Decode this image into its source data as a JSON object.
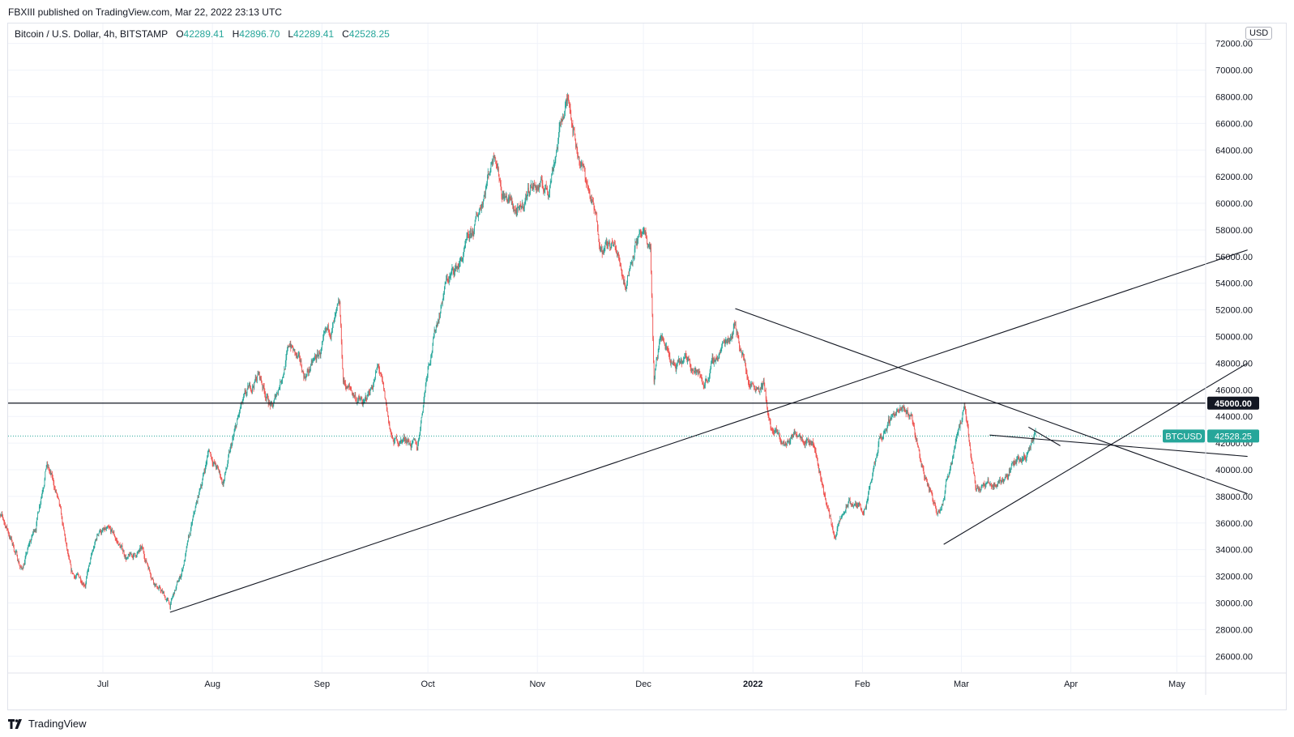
{
  "header": {
    "published_by": "FBXIII published on TradingView.com, Mar 22, 2022 23:13 UTC"
  },
  "legend": {
    "symbol": "Bitcoin / U.S. Dollar, 4h, BITSTAMP",
    "o_label": "O",
    "o_value": "42289.41",
    "h_label": "H",
    "h_value": "42896.70",
    "l_label": "L",
    "l_value": "42289.41",
    "c_label": "C",
    "c_value": "42528.25"
  },
  "currency_button": "USD",
  "brand": {
    "name": "TradingView"
  },
  "colors": {
    "up": "#26a69a",
    "down": "#ef5350",
    "line": "#131722",
    "grid": "#f0f3fa",
    "price_label_bg": "#26a69a",
    "level_label_bg": "#131722"
  },
  "chart_data": {
    "type": "candlestick",
    "symbol": "BTCUSD",
    "interval": "4h",
    "ylim": [
      24800,
      73500
    ],
    "y_ticks": [
      26000,
      28000,
      30000,
      32000,
      34000,
      36000,
      38000,
      40000,
      42000,
      44000,
      46000,
      48000,
      50000,
      52000,
      54000,
      56000,
      58000,
      60000,
      62000,
      64000,
      66000,
      68000,
      70000,
      72000
    ],
    "x_ticks": [
      {
        "label": "Jul",
        "date": "2021-07-01",
        "bold": false
      },
      {
        "label": "Aug",
        "date": "2021-08-01",
        "bold": false
      },
      {
        "label": "Sep",
        "date": "2021-09-01",
        "bold": false
      },
      {
        "label": "Oct",
        "date": "2021-10-01",
        "bold": false
      },
      {
        "label": "Nov",
        "date": "2021-11-01",
        "bold": false
      },
      {
        "label": "Dec",
        "date": "2021-12-01",
        "bold": false
      },
      {
        "label": "2022",
        "date": "2022-01-01",
        "bold": true
      },
      {
        "label": "Feb",
        "date": "2022-02-01",
        "bold": false
      },
      {
        "label": "Mar",
        "date": "2022-03-01",
        "bold": false
      },
      {
        "label": "Apr",
        "date": "2022-04-01",
        "bold": false
      },
      {
        "label": "May",
        "date": "2022-05-01",
        "bold": false
      }
    ],
    "price_path": [
      [
        "2021-06-01",
        37000
      ],
      [
        "2021-06-04",
        35500
      ],
      [
        "2021-06-08",
        32500
      ],
      [
        "2021-06-12",
        35800
      ],
      [
        "2021-06-15",
        40600
      ],
      [
        "2021-06-18",
        38000
      ],
      [
        "2021-06-22",
        32000
      ],
      [
        "2021-06-26",
        31700
      ],
      [
        "2021-06-30",
        35500
      ],
      [
        "2021-07-04",
        35000
      ],
      [
        "2021-07-08",
        33300
      ],
      [
        "2021-07-12",
        33900
      ],
      [
        "2021-07-16",
        31500
      ],
      [
        "2021-07-20",
        29800
      ],
      [
        "2021-07-23",
        32000
      ],
      [
        "2021-07-26",
        35500
      ],
      [
        "2021-07-31",
        41500
      ],
      [
        "2021-08-04",
        39000
      ],
      [
        "2021-08-09",
        44500
      ],
      [
        "2021-08-14",
        47200
      ],
      [
        "2021-08-18",
        44500
      ],
      [
        "2021-08-23",
        49500
      ],
      [
        "2021-08-27",
        47000
      ],
      [
        "2021-08-31",
        48500
      ],
      [
        "2021-09-06",
        51800
      ],
      [
        "2021-09-07",
        46500
      ],
      [
        "2021-09-13",
        44800
      ],
      [
        "2021-09-17",
        47700
      ],
      [
        "2021-09-21",
        42000
      ],
      [
        "2021-09-25",
        42400
      ],
      [
        "2021-09-28",
        41500
      ],
      [
        "2021-10-01",
        48000
      ],
      [
        "2021-10-06",
        54000
      ],
      [
        "2021-10-10",
        55500
      ],
      [
        "2021-10-14",
        57800
      ],
      [
        "2021-10-20",
        64300
      ],
      [
        "2021-10-22",
        61000
      ],
      [
        "2021-10-27",
        59000
      ],
      [
        "2021-10-30",
        61500
      ],
      [
        "2021-11-04",
        61000
      ],
      [
        "2021-11-08",
        66500
      ],
      [
        "2021-11-10",
        68000
      ],
      [
        "2021-11-12",
        64500
      ],
      [
        "2021-11-16",
        60500
      ],
      [
        "2021-11-19",
        57000
      ],
      [
        "2021-11-23",
        56600
      ],
      [
        "2021-11-26",
        54000
      ],
      [
        "2021-11-29",
        57600
      ],
      [
        "2021-12-03",
        56600
      ],
      [
        "2021-12-04",
        46500
      ],
      [
        "2021-12-06",
        50000
      ],
      [
        "2021-12-10",
        47500
      ],
      [
        "2021-12-14",
        48300
      ],
      [
        "2021-12-18",
        46500
      ],
      [
        "2021-12-22",
        48600
      ],
      [
        "2021-12-27",
        51000
      ],
      [
        "2021-12-31",
        46500
      ],
      [
        "2022-01-04",
        46500
      ],
      [
        "2022-01-06",
        43000
      ],
      [
        "2022-01-10",
        41800
      ],
      [
        "2022-01-14",
        43000
      ],
      [
        "2022-01-18",
        42200
      ],
      [
        "2022-01-21",
        38500
      ],
      [
        "2022-01-24",
        35000
      ],
      [
        "2022-01-28",
        37500
      ],
      [
        "2022-02-02",
        37000
      ],
      [
        "2022-02-06",
        42200
      ],
      [
        "2022-02-10",
        44500
      ],
      [
        "2022-02-15",
        44000
      ],
      [
        "2022-02-18",
        40000
      ],
      [
        "2022-02-22",
        37000
      ],
      [
        "2022-02-24",
        38000
      ],
      [
        "2022-02-28",
        43200
      ],
      [
        "2022-03-02",
        44400
      ],
      [
        "2022-03-05",
        39000
      ],
      [
        "2022-03-08",
        38800
      ],
      [
        "2022-03-11",
        39000
      ],
      [
        "2022-03-14",
        39600
      ],
      [
        "2022-03-17",
        41000
      ],
      [
        "2022-03-20",
        41200
      ],
      [
        "2022-03-22",
        42528
      ]
    ],
    "trendlines": [
      {
        "name": "rising-support-long",
        "from": [
          "2021-07-20",
          29300
        ],
        "to": [
          "2022-05-21",
          56500
        ]
      },
      {
        "name": "descending-resistance",
        "from": [
          "2021-12-27",
          52100
        ],
        "to": [
          "2022-05-21",
          38200
        ]
      },
      {
        "name": "rising-support-short",
        "from": [
          "2022-02-24",
          34400
        ],
        "to": [
          "2022-05-21",
          48000
        ]
      },
      {
        "name": "minor-descending",
        "from": [
          "2022-03-09",
          42600
        ],
        "to": [
          "2022-05-21",
          41000
        ]
      },
      {
        "name": "triangle-upper",
        "from": [
          "2022-03-20",
          43200
        ],
        "to": [
          "2022-03-29",
          41800
        ]
      }
    ],
    "horizontal_levels": [
      {
        "value": 45000,
        "label": "45000.00"
      }
    ],
    "current_price": {
      "value": 42528.25,
      "symbol_label": "BTCUSD",
      "label": "42528.25"
    }
  }
}
